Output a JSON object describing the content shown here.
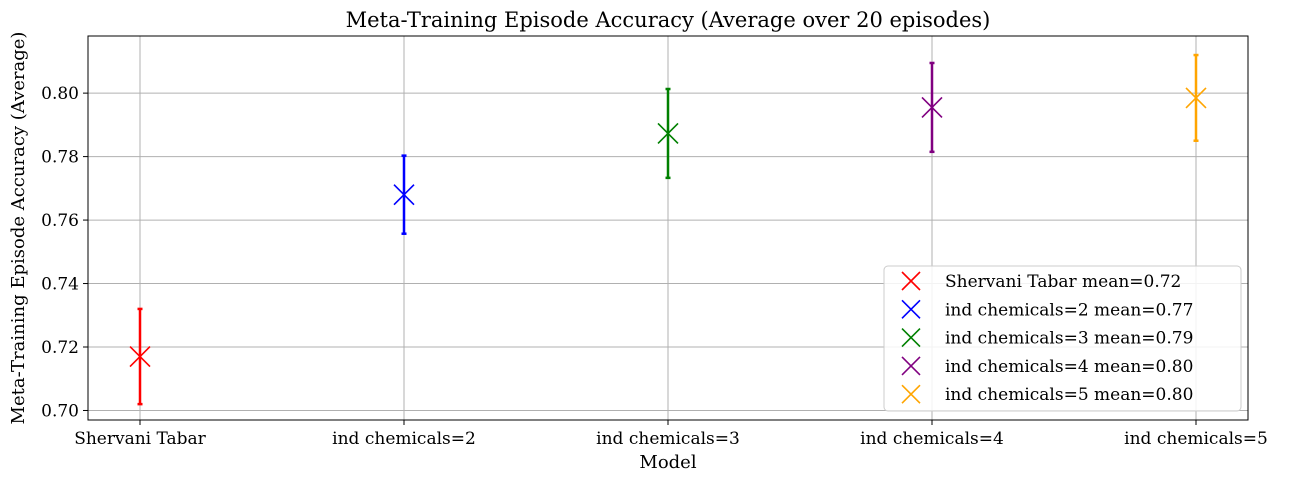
{
  "chart_data": {
    "type": "scatter",
    "title": "Meta-Training Episode Accuracy (Average over 20 episodes)",
    "xlabel": "Model",
    "ylabel": "Meta-Training Episode Accuracy (Average)",
    "categories": [
      "Shervani Tabar",
      "ind chemicals=2",
      "ind chemicals=3",
      "ind chemicals=4",
      "ind chemicals=5"
    ],
    "ylim": [
      0.697,
      0.818
    ],
    "yticks": [
      "0.70",
      "0.72",
      "0.74",
      "0.76",
      "0.78",
      "0.80"
    ],
    "ytick_values": [
      0.7,
      0.72,
      0.74,
      0.76,
      0.78,
      0.8
    ],
    "grid": true,
    "legend_position": "lower-right",
    "series": [
      {
        "name": "Shervani Tabar mean=0.72",
        "category": "Shervani Tabar",
        "mean": 0.717,
        "error": 0.015,
        "color": "#ff0000"
      },
      {
        "name": "ind chemicals=2 mean=0.77",
        "category": "ind chemicals=2",
        "mean": 0.768,
        "error": 0.0123,
        "color": "#0000ff"
      },
      {
        "name": "ind chemicals=3 mean=0.79",
        "category": "ind chemicals=3",
        "mean": 0.7873,
        "error": 0.014,
        "color": "#008000"
      },
      {
        "name": "ind chemicals=4 mean=0.80",
        "category": "ind chemicals=4",
        "mean": 0.7955,
        "error": 0.014,
        "color": "#800080"
      },
      {
        "name": "ind chemicals=5 mean=0.80",
        "category": "ind chemicals=5",
        "mean": 0.7985,
        "error": 0.0135,
        "color": "#ffa500"
      }
    ]
  }
}
